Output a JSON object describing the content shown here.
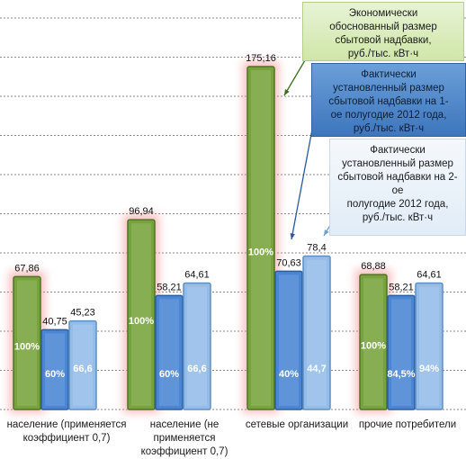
{
  "chart_data": {
    "type": "bar",
    "categories": [
      "население (применяется коэффициент 0,7)",
      "население (не применяется коэффициент 0,7)",
      "сетевые организации",
      "прочие потребители"
    ],
    "categories_display": [
      [
        "население (применяется",
        "коэффициент 0,7)"
      ],
      [
        "население (не",
        "применяется",
        "коэффициент 0,7)"
      ],
      [
        "сетевые организации"
      ],
      [
        "прочие потребители"
      ]
    ],
    "series": [
      {
        "name": "Экономически обоснованный размер сбытовой надбавки, руб./тыс. кВт·ч",
        "values": [
          67.86,
          96.94,
          175.16,
          68.88
        ],
        "value_labels": [
          "67,86",
          "96,94",
          "175,16",
          "68,88"
        ],
        "inner_labels": [
          "100%",
          "100%",
          "100%",
          "100%"
        ],
        "color": "#77a33c"
      },
      {
        "name": "Фактически установленный размер сбытовой надбавки на 1-ое полугодие 2012 года, руб./тыс. кВт·ч",
        "values": [
          40.75,
          58.21,
          70.63,
          58.21
        ],
        "value_labels": [
          "40,75",
          "58,21",
          "70,63",
          "58,21"
        ],
        "inner_labels": [
          "60%",
          "60%",
          "40%",
          "84,5%"
        ],
        "color": "#4a86d3"
      },
      {
        "name": "Фактически установленный размер сбытовой надбавки на 2-ое полугодие 2012 года, руб./тыс. кВт·ч",
        "values": [
          45.23,
          64.61,
          78.4,
          64.61
        ],
        "value_labels": [
          "45,23",
          "64,61",
          "78,4",
          "64,61"
        ],
        "inner_labels": [
          "66,6",
          "66,6",
          "44,7",
          "94%"
        ],
        "color": "#93bce9"
      }
    ],
    "callouts": [
      [
        "Экономически",
        "обоснованный размер",
        "сбытовой надбавки,",
        "руб./тыс. кВт·ч"
      ],
      [
        "Фактически",
        "установленный размер",
        "сбытовой надбавки на 1-",
        "ое полугодие 2012 года,",
        "руб./тыс. кВт·ч"
      ],
      [
        "Фактически",
        "установленный размер",
        "сбытовой надбавки на 2-ое",
        "полугодие 2012 года,",
        "руб./тыс. кВт·ч"
      ]
    ],
    "ylim": [
      0,
      200
    ],
    "grid": true,
    "legend": "callouts-right"
  }
}
